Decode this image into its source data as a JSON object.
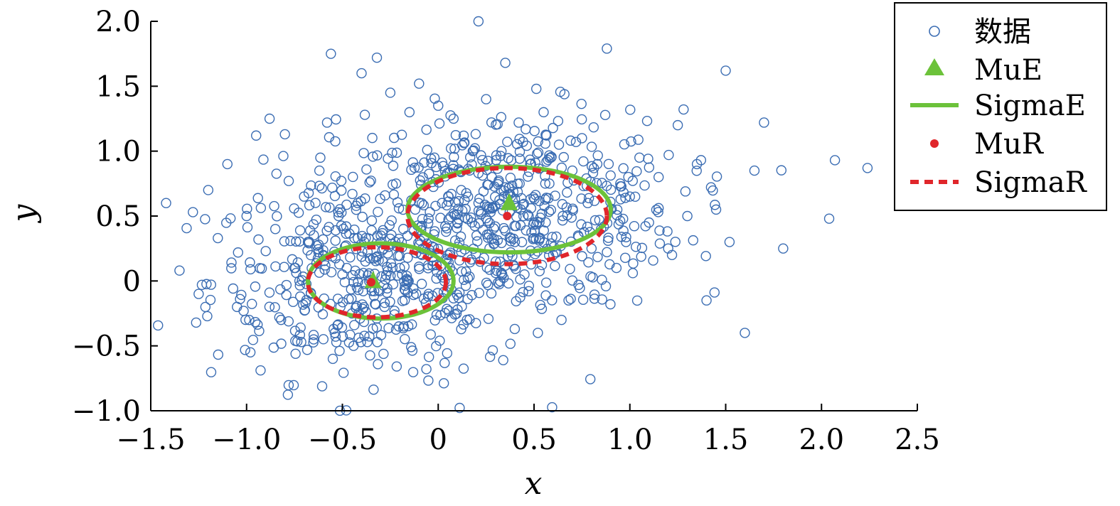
{
  "chart_data": {
    "type": "scatter",
    "xlabel": "x",
    "ylabel": "y",
    "xlim": [
      -1.5,
      2.5
    ],
    "ylim": [
      -1.0,
      2.0
    ],
    "x_ticks": [
      "−1.5",
      "−1.0",
      "−0.5",
      "0",
      "0.5",
      "1.0",
      "1.5",
      "2.0",
      "2.5"
    ],
    "y_ticks": [
      "−1.0",
      "−0.5",
      "0",
      "0.5",
      "1.0",
      "1.5",
      "2.0"
    ],
    "grid": false,
    "legend_position": "top-right",
    "colors": {
      "data": "#3b6db3",
      "estimate": "#6cc23a",
      "reference": "#e0262b"
    },
    "series": [
      {
        "name": "数据",
        "kind": "scatter",
        "points_note": "approximately 1000 points from a two-component Gaussian mixture",
        "x": [
          -1.42,
          -1.35,
          -1.28,
          -1.25,
          -1.2,
          -1.15,
          -1.1,
          -1.05,
          -1.0,
          -0.98,
          -0.95,
          -0.9,
          -0.88,
          -0.85,
          -0.82,
          -0.8,
          -0.78,
          -0.75,
          -0.72,
          -0.7,
          -0.68,
          -0.65,
          -0.62,
          -0.6,
          -0.58,
          -0.56,
          -0.55,
          -0.52,
          -0.5,
          -0.48,
          -0.45,
          -0.42,
          -0.4,
          -0.38,
          -0.35,
          -0.32,
          -0.3,
          -0.28,
          -0.25,
          -0.22,
          -0.2,
          -0.18,
          -0.15,
          -0.12,
          -0.1,
          -0.08,
          -0.05,
          -0.02,
          0.0,
          0.02,
          0.05,
          0.08,
          0.1,
          0.12,
          0.15,
          0.18,
          0.2,
          0.21,
          0.25,
          0.28,
          0.3,
          0.33,
          0.35,
          0.38,
          0.4,
          0.42,
          0.45,
          0.48,
          0.5,
          0.52,
          0.55,
          0.58,
          0.6,
          0.63,
          0.65,
          0.68,
          0.7,
          0.73,
          0.75,
          0.78,
          0.8,
          0.83,
          0.85,
          0.88,
          0.9,
          0.93,
          0.95,
          0.98,
          1.0,
          1.05,
          1.1,
          1.15,
          1.2,
          1.25,
          1.3,
          1.35,
          1.4,
          1.45,
          1.5,
          1.52,
          1.6,
          1.65,
          1.7,
          1.8,
          2.04,
          2.07,
          2.24
        ],
        "y": [
          0.6,
          0.08,
          0.53,
          -0.1,
          0.7,
          0.33,
          0.9,
          -0.2,
          0.5,
          -0.55,
          1.12,
          0.23,
          1.25,
          0.4,
          -0.3,
          1.13,
          0.77,
          0.1,
          -0.12,
          0.65,
          0.3,
          -0.45,
          0.85,
          0.2,
          1.22,
          1.75,
          -0.6,
          0.5,
          0.05,
          0.42,
          -0.25,
          0.6,
          1.6,
          0.15,
          -0.05,
          1.72,
          0.35,
          -0.2,
          1.45,
          0.75,
          0.1,
          -0.35,
          1.3,
          0.55,
          1.52,
          0.25,
          -0.1,
          0.95,
          1.35,
          0.6,
          0.2,
          1.25,
          0.45,
          0.7,
          -0.3,
          1.0,
          0.35,
          2.0,
          1.4,
          0.8,
          0.15,
          1.0,
          1.68,
          0.65,
          0.3,
          1.22,
          0.05,
          0.9,
          0.45,
          -0.4,
          1.3,
          0.75,
          0.2,
          1.05,
          0.5,
          -0.15,
          0.85,
          0.35,
          1.1,
          0.6,
          0.25,
          0.9,
          0.4,
          1.79,
          0.55,
          0.1,
          0.75,
          0.3,
          0.65,
          0.95,
          0.45,
          0.8,
          0.25,
          1.2,
          0.5,
          0.9,
          -0.15,
          0.55,
          1.62,
          0.3,
          -0.4,
          0.85,
          1.22,
          0.25,
          0.48,
          0.93,
          0.87
        ]
      },
      {
        "name": "MuE",
        "kind": "point",
        "marker": "triangle",
        "points": [
          [
            -0.34,
            0.0
          ],
          [
            0.37,
            0.6
          ]
        ]
      },
      {
        "name": "SigmaE",
        "kind": "ellipse",
        "line": "solid",
        "ellipses": [
          {
            "cx": -0.3,
            "cy": 0.0,
            "rx": 0.38,
            "ry": 0.29
          },
          {
            "cx": 0.37,
            "cy": 0.55,
            "rx": 0.53,
            "ry": 0.33
          }
        ]
      },
      {
        "name": "MuR",
        "kind": "point",
        "marker": "dot",
        "points": [
          [
            -0.35,
            -0.01
          ],
          [
            0.36,
            0.5
          ]
        ]
      },
      {
        "name": "SigmaR",
        "kind": "ellipse",
        "line": "dashed",
        "ellipses": [
          {
            "cx": -0.32,
            "cy": -0.01,
            "rx": 0.36,
            "ry": 0.27
          },
          {
            "cx": 0.36,
            "cy": 0.5,
            "rx": 0.52,
            "ry": 0.37
          }
        ]
      }
    ]
  }
}
